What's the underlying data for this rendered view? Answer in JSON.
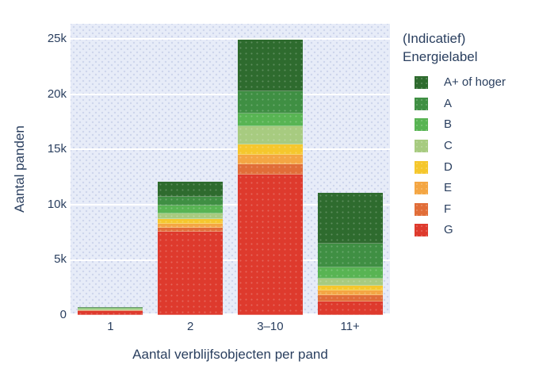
{
  "colors": {
    "page_bg": "#ffffff",
    "plot_bg": "#e7ecf8",
    "grid": "#ffffff",
    "text": "#2a3f5f"
  },
  "chart_data": {
    "type": "bar",
    "stacked": true,
    "title": "",
    "xlabel": "Aantal verblijfsobjecten per pand",
    "ylabel": "Aantal panden",
    "categories": [
      "1",
      "2",
      "3–10",
      "11+"
    ],
    "ylim": [
      0,
      26400
    ],
    "grid": true,
    "y_ticks": [
      {
        "label": "0",
        "value": 0
      },
      {
        "label": "5k",
        "value": 5000
      },
      {
        "label": "10k",
        "value": 10000
      },
      {
        "label": "15k",
        "value": 15000
      },
      {
        "label": "20k",
        "value": 20000
      },
      {
        "label": "25k",
        "value": 25000
      }
    ],
    "legend": {
      "position": "right",
      "title_line1": "(Indicatief)",
      "title_line2": "Energielabel"
    },
    "series": [
      {
        "name": "A+ of hoger",
        "color": "#2e6b2e",
        "values": [
          30,
          1400,
          4700,
          4600
        ]
      },
      {
        "name": "A",
        "color": "#3f8f43",
        "values": [
          40,
          800,
          2000,
          2150
        ]
      },
      {
        "name": "B",
        "color": "#58b453",
        "values": [
          60,
          700,
          1200,
          1050
        ]
      },
      {
        "name": "C",
        "color": "#a7cb80",
        "values": [
          130,
          500,
          1650,
          650
        ]
      },
      {
        "name": "D",
        "color": "#f5c72d",
        "values": [
          20,
          400,
          900,
          450
        ]
      },
      {
        "name": "E",
        "color": "#f4a643",
        "values": [
          10,
          350,
          850,
          400
        ]
      },
      {
        "name": "F",
        "color": "#e16d38",
        "values": [
          20,
          400,
          950,
          550
        ]
      },
      {
        "name": "G",
        "color": "#de3a2d",
        "values": [
          380,
          7550,
          12750,
          1250
        ]
      }
    ]
  }
}
